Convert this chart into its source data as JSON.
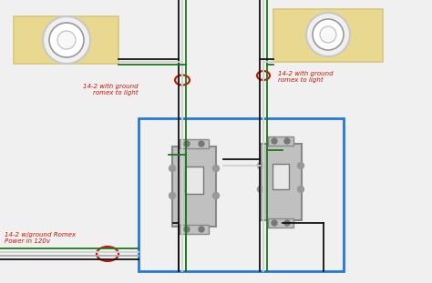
{
  "bg_color": "#f0f0f0",
  "wire_black": "#111111",
  "wire_white": "#d0d0d0",
  "wire_green": "#1a7a1a",
  "wire_gray": "#aaaaaa",
  "blue_box": "#2277dd",
  "red_annot": "#cc1100",
  "beige_bg": "#d8c87a",
  "beige_fill": "#e8d890",
  "light_gray": "#c8c8c8",
  "light_fill": "#f0f0f0",
  "switch_fill": "#c0c0c0",
  "switch_edge": "#888888",
  "label_left_top": "14-2 with ground\nromex to light",
  "label_right_top": "14-2 with ground\nromex to light",
  "label_bottom_left": "14-2 w/ground Romex\nPower in 120v",
  "fig_width": 4.74,
  "fig_height": 3.11,
  "dpi": 100
}
